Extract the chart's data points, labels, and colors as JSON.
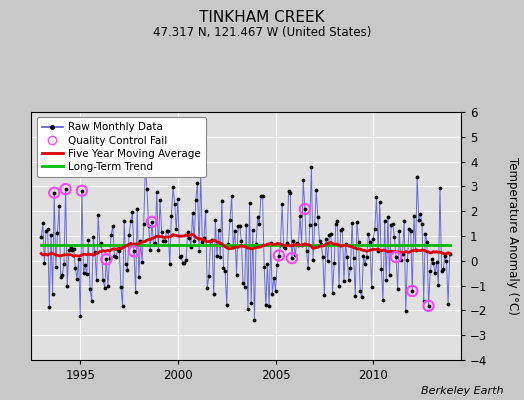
{
  "title": "TINKHAM CREEK",
  "subtitle": "47.317 N, 121.467 W (United States)",
  "ylabel": "Temperature Anomaly (°C)",
  "attribution": "Berkeley Earth",
  "xlim": [
    1992.5,
    2014.5
  ],
  "ylim": [
    -4,
    6
  ],
  "yticks": [
    -4,
    -3,
    -2,
    -1,
    0,
    1,
    2,
    3,
    4,
    5,
    6
  ],
  "xticks": [
    1995,
    2000,
    2005,
    2010
  ],
  "bg_color": "#c8c8c8",
  "plot_bg": "#e0e0e0",
  "raw_color": "#5555dd",
  "raw_marker_color": "#000000",
  "ma_color": "#dd0000",
  "trend_color": "#00bb00",
  "qc_color": "#ff44ff",
  "trend_value": 0.62,
  "seed": 77,
  "n_points": 252,
  "start_year": 1993.0,
  "ma_shape": [
    0.65,
    0.7,
    0.72,
    0.65,
    0.55,
    0.45,
    0.38,
    0.32,
    0.38,
    0.5,
    0.62,
    0.75,
    0.88,
    1.0,
    1.1,
    1.12,
    1.08,
    1.0,
    0.88,
    0.72,
    0.55,
    0.4,
    0.28,
    0.2,
    0.22,
    0.3,
    0.4,
    0.55,
    0.68,
    0.7,
    0.65,
    0.62,
    0.6,
    0.62,
    0.65,
    0.68
  ],
  "ma_times": [
    1993.0,
    1993.5,
    1994.0,
    1994.5,
    1995.0,
    1995.5,
    1996.0,
    1996.5,
    1997.0,
    1997.5,
    1998.0,
    1998.5,
    1999.0,
    1999.5,
    2000.0,
    2000.5,
    2001.0,
    2001.5,
    2002.0,
    2002.5,
    2003.0,
    2003.5,
    2004.0,
    2004.5,
    2005.0,
    2005.5,
    2006.0,
    2006.5,
    2007.0,
    2007.5,
    2008.0,
    2008.5,
    2009.0,
    2009.5,
    2010.0,
    2010.5
  ]
}
